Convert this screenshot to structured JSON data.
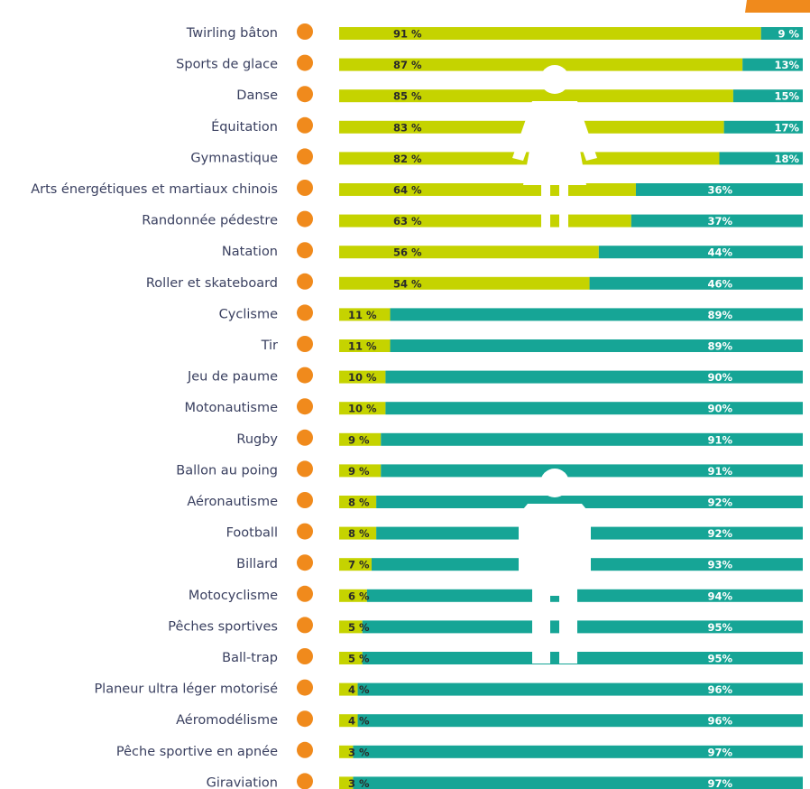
{
  "chart_data": {
    "type": "stacked-bar-horizontal",
    "categories": [
      "Twirling bâton",
      "Sports de glace",
      "Danse",
      "Équitation",
      "Gymnastique",
      "Arts énergétiques et martiaux chinois",
      "Randonnée pédestre",
      "Natation",
      "Roller et skateboard",
      "Cyclisme",
      "Tir",
      "Jeu de paume",
      "Motonautisme",
      "Rugby",
      "Ballon au poing",
      "Aéronautisme",
      "Football",
      "Billard",
      "Motocyclisme",
      "Pêches sportives",
      "Ball-trap",
      "Planeur ultra léger motorisé",
      "Aéromodélisme",
      "Pêche sportive en apnée",
      "Giraviation"
    ],
    "xlim": [
      0,
      100
    ],
    "series": [
      {
        "color": "#c5d300",
        "values": [
          91,
          87,
          85,
          83,
          82,
          64,
          63,
          56,
          54,
          11,
          11,
          10,
          10,
          9,
          9,
          8,
          8,
          7,
          6,
          5,
          5,
          4,
          4,
          3,
          3
        ],
        "value_labels": [
          "91 %",
          "87 %",
          "85 %",
          "83 %",
          "82 %",
          "64 %",
          "63 %",
          "56 %",
          "54 %",
          "11 %",
          "11 %",
          "10 %",
          "10 %",
          "9 %",
          "9 %",
          "8 %",
          "8 %",
          "7 %",
          "6 %",
          "5 %",
          "5 %",
          "4 %",
          "4 %",
          "3 %",
          "3 %"
        ]
      },
      {
        "color": "#16a596",
        "values": [
          9,
          13,
          15,
          17,
          18,
          36,
          37,
          44,
          46,
          89,
          89,
          90,
          90,
          91,
          91,
          92,
          92,
          93,
          94,
          95,
          95,
          96,
          96,
          97,
          97
        ],
        "value_labels": [
          "9 %",
          "13%",
          "15%",
          "17%",
          "18%",
          "36%",
          "37%",
          "44%",
          "46%",
          "89%",
          "89%",
          "90%",
          "90%",
          "91%",
          "91%",
          "92%",
          "92%",
          "93%",
          "94%",
          "95%",
          "95%",
          "96%",
          "96%",
          "97%",
          "97%"
        ]
      }
    ]
  }
}
